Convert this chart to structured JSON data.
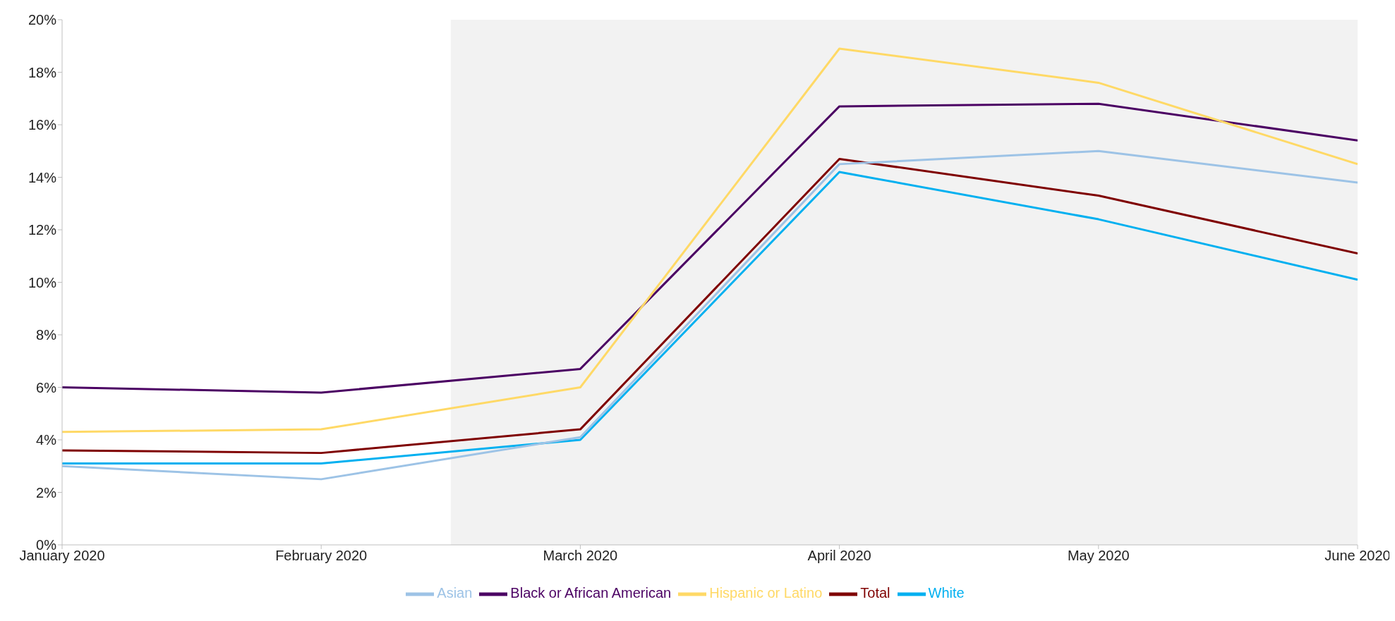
{
  "chart_data": {
    "type": "line",
    "categories": [
      "January 2020",
      "February 2020",
      "March 2020",
      "April 2020",
      "May 2020",
      "June 2020"
    ],
    "series": [
      {
        "name": "Total",
        "color": "#7f0000",
        "values": [
          3.6,
          3.5,
          4.4,
          14.7,
          13.3,
          11.1
        ]
      },
      {
        "name": "White",
        "color": "#00b0f0",
        "values": [
          3.1,
          3.1,
          4.0,
          14.2,
          12.4,
          10.1
        ]
      },
      {
        "name": "Black or African American",
        "color": "#4b0063",
        "values": [
          6.0,
          5.8,
          6.7,
          16.7,
          16.8,
          15.4
        ]
      },
      {
        "name": "Asian",
        "color": "#9dc3e6",
        "values": [
          3.0,
          2.5,
          4.1,
          14.5,
          15.0,
          13.8
        ]
      },
      {
        "name": "Hispanic or Latino",
        "color": "#ffd966",
        "values": [
          4.3,
          4.4,
          6.0,
          18.9,
          17.6,
          14.5
        ]
      }
    ],
    "ylim": [
      0,
      20
    ],
    "yticks": [
      {
        "value": 0,
        "label": "0%"
      },
      {
        "value": 2,
        "label": "2%"
      },
      {
        "value": 4,
        "label": "4%"
      },
      {
        "value": 6,
        "label": "6%"
      },
      {
        "value": 8,
        "label": "8%"
      },
      {
        "value": 10,
        "label": "10%"
      },
      {
        "value": 12,
        "label": "12%"
      },
      {
        "value": 14,
        "label": "14%"
      },
      {
        "value": 16,
        "label": "16%"
      },
      {
        "value": 18,
        "label": "18%"
      },
      {
        "value": 20,
        "label": "20%"
      }
    ],
    "bands": [
      {
        "axis": "x",
        "from": "March 2020",
        "to": "June 2020",
        "color": "#f2f2f2"
      }
    ],
    "grid": false,
    "legend": "bottom",
    "marker": "none",
    "line_style": "solid"
  }
}
